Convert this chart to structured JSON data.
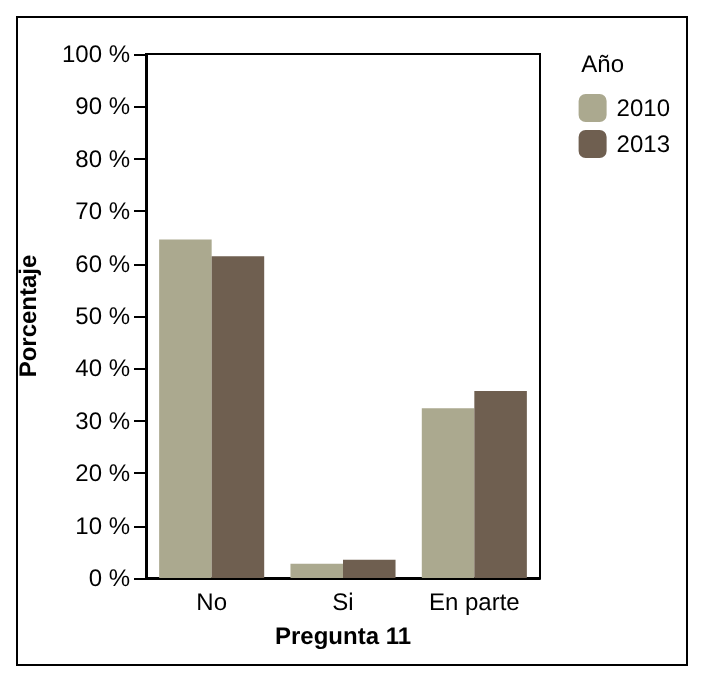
{
  "chart_data": {
    "type": "bar",
    "xlabel": "Pregunta 11",
    "ylabel": "Porcentaje",
    "legend_title": "Año",
    "categories": [
      "No",
      "Si",
      "En parte"
    ],
    "series": [
      {
        "name": "2010",
        "color": "#aba98f",
        "values": [
          64.6,
          2.7,
          32.4
        ]
      },
      {
        "name": "2013",
        "color": "#6f5f50",
        "values": [
          61.4,
          3.5,
          35.7
        ]
      }
    ],
    "ylim": [
      0,
      100
    ],
    "yticks": [
      {
        "value": 0,
        "label": "0 %"
      },
      {
        "value": 10,
        "label": "10 %"
      },
      {
        "value": 20,
        "label": "20 %"
      },
      {
        "value": 30,
        "label": "30 %"
      },
      {
        "value": 40,
        "label": "40 %"
      },
      {
        "value": 50,
        "label": "50 %"
      },
      {
        "value": 60,
        "label": "60 %"
      },
      {
        "value": 70,
        "label": "70 %"
      },
      {
        "value": 80,
        "label": "80 %"
      },
      {
        "value": 90,
        "label": "90 %"
      },
      {
        "value": 100,
        "label": "100 %"
      }
    ],
    "grid": false,
    "legend": "top right"
  }
}
